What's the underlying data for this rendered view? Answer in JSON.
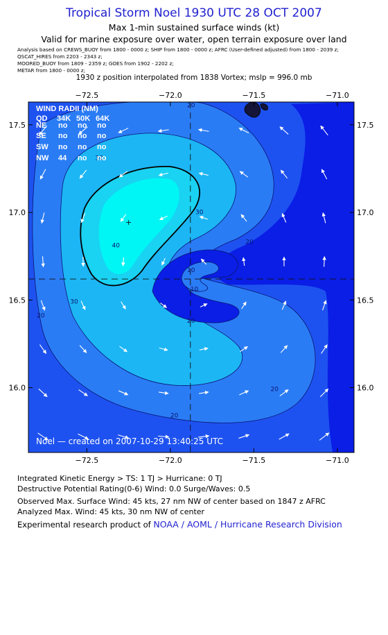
{
  "header": {
    "title": "Tropical Storm Noel 1930 UTC 28 OCT 2007",
    "subtitle1": "Max 1-min sustained surface winds (kt)",
    "subtitle2": "Valid for marine exposure over water, open terrain exposure over land",
    "analysis_lines": [
      "Analysis based on  CREWS_BUOY from 1800 - 0000 z;  SHIP from 1800 - 0000 z;  AFRC (User-defined adjusted) from 1800 - 2039 z;",
      "QSCAT_HIRES from 2203 - 2343 z;",
      "MOORED_BUOY from 1809 - 2359 z;  GOES from 1902 - 2202 z;",
      "METAR from 1800 - 0000 z;"
    ],
    "position_note": "1930 z position interpolated from 1838 Vortex; mslp = 996.0 mb"
  },
  "wind_radii": {
    "title": "WIND RADII (NM)",
    "columns": [
      "QD",
      "34K",
      "50K",
      "64K"
    ],
    "rows": [
      [
        "NE",
        "no",
        "no",
        "no"
      ],
      [
        "SE",
        "no",
        "no",
        "no"
      ],
      [
        "SW",
        "no",
        "no",
        "no"
      ],
      [
        "NW",
        "44",
        "no",
        "no"
      ]
    ]
  },
  "watermark": "Noel — created on 2007-10-29 13:40:25 UTC",
  "chart_data": {
    "type": "contour",
    "xlim": [
      -72.85,
      -70.9
    ],
    "ylim": [
      15.63,
      17.63
    ],
    "x_ticks": [
      -72.5,
      -72.0,
      -71.5,
      -71.0
    ],
    "x_tick_labels": [
      "−72.5",
      "−72.0",
      "−71.5",
      "−71.0"
    ],
    "y_ticks": [
      16.0,
      16.5,
      17.0,
      17.5
    ],
    "y_tick_labels": [
      "16.0",
      "16.5",
      "17.0",
      "17.5"
    ],
    "center": {
      "lon": -71.88,
      "lat": 16.62
    },
    "max_wind_marker": {
      "lon": -72.25,
      "lat": 16.94
    },
    "contour_levels": [
      10,
      20,
      30,
      34,
      40
    ],
    "contour_labels": [
      {
        "text": "20",
        "lon": -71.9,
        "lat": 17.6
      },
      {
        "text": "30",
        "lon": -72.45,
        "lat": 17.3
      },
      {
        "text": "30",
        "lon": -71.85,
        "lat": 16.99
      },
      {
        "text": "20",
        "lon": -71.55,
        "lat": 16.82
      },
      {
        "text": "40",
        "lon": -72.35,
        "lat": 16.8
      },
      {
        "text": "30",
        "lon": -72.6,
        "lat": 16.48
      },
      {
        "text": "20",
        "lon": -72.8,
        "lat": 16.4
      },
      {
        "text": "10",
        "lon": -71.9,
        "lat": 16.66
      },
      {
        "text": "10",
        "lon": -71.88,
        "lat": 16.55
      },
      {
        "text": "20",
        "lon": -71.9,
        "lat": 16.37
      },
      {
        "text": "20",
        "lon": -71.4,
        "lat": 15.98
      },
      {
        "text": "20",
        "lon": -72.0,
        "lat": 15.83
      }
    ],
    "colors": {
      "outer": "#1e52f0",
      "deep": "#0a1ee6",
      "c20": "#2a7cf5",
      "c30": "#1cb6f5",
      "c34": "#1ad2f2",
      "core": "#00f5f5",
      "line": "#0a1470",
      "land": "#15153a"
    }
  },
  "footer": {
    "ike": "Integrated Kinetic Energy > TS: 1 TJ   > Hurricane: 0 TJ",
    "dpr": "Destructive Potential Rating(0-6)   Wind: 0.0 Surge/Waves: 0.5",
    "obs": "Observed Max. Surface Wind: 45 kts, 27 nm NW of center based on 1847 z AFRC",
    "ana": "Analyzed Max. Wind: 45 kts, 30 nm NW of center",
    "product_prefix": "Experimental research product of ",
    "product_link": "NOAA / AOML / Hurricane Research Division"
  }
}
